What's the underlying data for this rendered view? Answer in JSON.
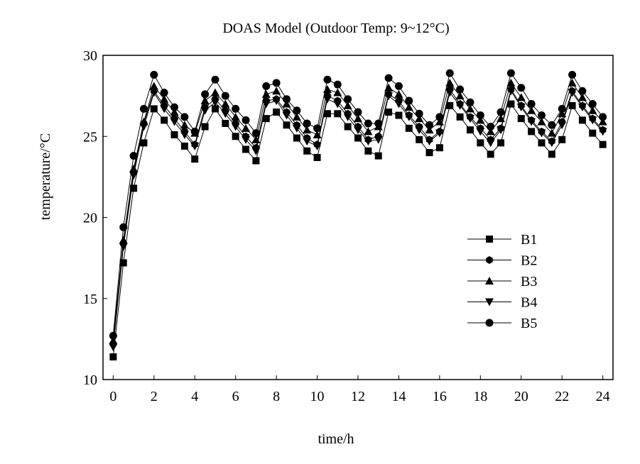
{
  "chart_data": {
    "type": "line",
    "title": "DOAS Model (Outdoor Temp: 9~12°C)",
    "xlabel": "time/h",
    "ylabel": "temperature/°C",
    "xlim": [
      -0.5,
      24.5
    ],
    "ylim": [
      10,
      30
    ],
    "xticks": [
      0,
      2,
      4,
      6,
      8,
      10,
      12,
      14,
      16,
      18,
      20,
      22,
      24
    ],
    "yticks": [
      10,
      15,
      20,
      25,
      30
    ],
    "grid": false,
    "legend_position": "center-right",
    "x": [
      0,
      0.5,
      1,
      1.5,
      2,
      2.5,
      3,
      3.5,
      4,
      4.5,
      5,
      5.5,
      6,
      6.5,
      7,
      7.5,
      8,
      8.5,
      9,
      9.5,
      10,
      10.5,
      11,
      11.5,
      12,
      12.5,
      13,
      13.5,
      14,
      14.5,
      15,
      15.5,
      16,
      16.5,
      17,
      17.5,
      18,
      18.5,
      19,
      19.5,
      20,
      20.5,
      21,
      21.5,
      22,
      22.5,
      23,
      23.5,
      24
    ],
    "series": [
      {
        "name": "B1",
        "marker": "square",
        "values": [
          11.4,
          17.2,
          21.8,
          24.6,
          26.7,
          26.0,
          25.1,
          24.4,
          23.6,
          25.6,
          26.7,
          25.8,
          25.0,
          24.2,
          23.5,
          26.1,
          26.5,
          25.7,
          24.9,
          24.1,
          23.7,
          26.4,
          26.4,
          25.6,
          24.9,
          24.1,
          23.8,
          26.5,
          26.3,
          25.5,
          24.8,
          24.0,
          24.3,
          26.9,
          26.2,
          25.4,
          24.6,
          23.9,
          24.6,
          27.0,
          26.1,
          25.3,
          24.6,
          23.9,
          24.8,
          26.9,
          26.0,
          25.2,
          24.5
        ]
      },
      {
        "name": "B2",
        "marker": "hexagon",
        "values": [
          12.2,
          18.4,
          22.8,
          25.8,
          27.8,
          26.9,
          26.1,
          25.3,
          24.5,
          26.8,
          27.3,
          26.6,
          25.8,
          25.0,
          24.3,
          27.2,
          27.3,
          26.5,
          25.7,
          24.9,
          24.5,
          27.5,
          27.2,
          26.4,
          25.6,
          24.8,
          25.0,
          27.6,
          27.2,
          26.3,
          25.6,
          24.8,
          25.3,
          27.9,
          27.0,
          26.2,
          25.5,
          24.8,
          25.5,
          27.9,
          26.9,
          26.0,
          25.3,
          24.7,
          25.9,
          27.8,
          26.9,
          26.1,
          25.4
        ]
      },
      {
        "name": "B3",
        "marker": "triangle-up",
        "values": [
          12.4,
          18.6,
          23.0,
          25.9,
          28.1,
          27.3,
          26.5,
          25.7,
          25.2,
          27.2,
          27.7,
          27.0,
          26.2,
          25.5,
          24.8,
          27.6,
          27.8,
          27.0,
          26.2,
          25.4,
          25.1,
          27.9,
          27.7,
          26.9,
          26.1,
          25.3,
          25.6,
          28.0,
          27.6,
          26.8,
          26.1,
          25.4,
          25.9,
          28.3,
          27.5,
          26.7,
          26.0,
          25.3,
          26.1,
          28.3,
          27.4,
          26.6,
          25.9,
          25.2,
          26.4,
          28.3,
          27.4,
          26.6,
          25.9
        ]
      },
      {
        "name": "B4",
        "marker": "triangle-down",
        "values": [
          12.0,
          18.2,
          22.6,
          25.6,
          27.7,
          26.7,
          25.9,
          25.1,
          24.4,
          26.6,
          27.1,
          26.4,
          25.6,
          24.8,
          24.1,
          27.0,
          27.2,
          26.3,
          25.5,
          24.7,
          24.4,
          27.3,
          27.0,
          26.2,
          25.4,
          24.7,
          24.8,
          27.5,
          27.0,
          26.2,
          25.4,
          24.7,
          25.2,
          27.7,
          26.9,
          26.1,
          25.3,
          24.6,
          25.4,
          27.8,
          26.8,
          25.9,
          25.2,
          24.6,
          25.7,
          27.7,
          26.8,
          26.0,
          25.3
        ]
      },
      {
        "name": "B5",
        "marker": "circle",
        "values": [
          12.7,
          19.4,
          23.8,
          26.7,
          28.8,
          27.7,
          26.8,
          26.2,
          25.3,
          27.6,
          28.5,
          27.5,
          26.7,
          26.0,
          25.2,
          28.1,
          28.3,
          27.3,
          26.6,
          25.8,
          25.5,
          28.5,
          28.2,
          27.3,
          26.5,
          25.8,
          25.8,
          28.6,
          28.1,
          27.2,
          26.4,
          25.7,
          26.2,
          28.9,
          27.9,
          27.1,
          26.3,
          25.6,
          26.5,
          28.9,
          28.0,
          27.0,
          26.3,
          25.7,
          26.7,
          28.8,
          27.8,
          27.0,
          26.2
        ]
      }
    ]
  }
}
